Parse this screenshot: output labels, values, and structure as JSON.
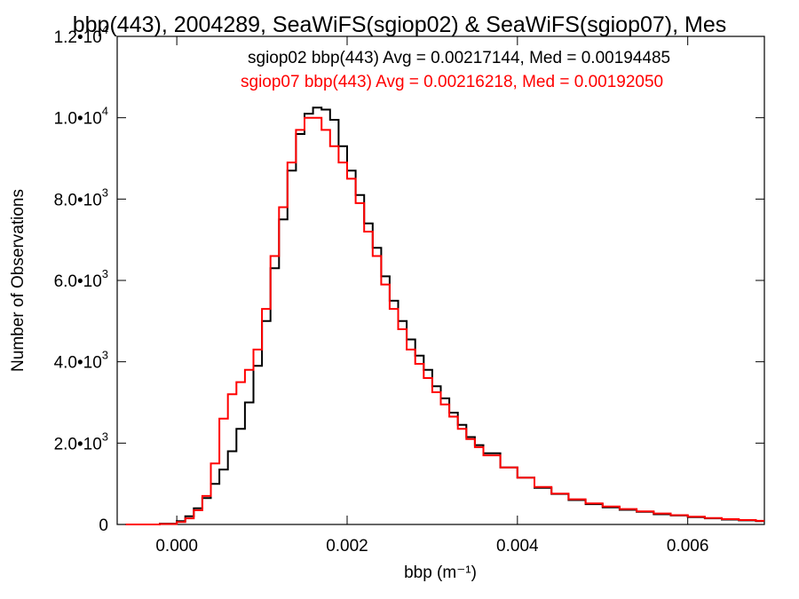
{
  "chart_data": {
    "type": "line",
    "title": "bbp(443), 2004289, SeaWiFS(sgiop02) & SeaWiFS(sgiop07), Mes",
    "xlabel": "bbp (m⁻¹)",
    "ylabel": "Number of Observations",
    "xlim": [
      -0.0007,
      0.0069
    ],
    "ylim": [
      0,
      12000
    ],
    "x_ticks": [
      0.0,
      0.002,
      0.004,
      0.006
    ],
    "x_tick_labels": [
      "0.000",
      "0.002",
      "0.004",
      "0.006"
    ],
    "y_ticks": [
      0,
      2000,
      4000,
      6000,
      8000,
      10000,
      12000
    ],
    "y_tick_labels": [
      {
        "mantissa": "0",
        "exponent": ""
      },
      {
        "mantissa": "2.0•10",
        "exponent": "3"
      },
      {
        "mantissa": "4.0•10",
        "exponent": "3"
      },
      {
        "mantissa": "6.0•10",
        "exponent": "3"
      },
      {
        "mantissa": "8.0•10",
        "exponent": "3"
      },
      {
        "mantissa": "1.0•10",
        "exponent": "4"
      },
      {
        "mantissa": "1.2•10",
        "exponent": "4"
      }
    ],
    "grid": false,
    "legend_position": "top-right",
    "series": [
      {
        "name": "sgiop02",
        "legend": "sgiop02 bbp(443) Avg = 0.00217144, Med = 0.00194485",
        "color": "#000000",
        "x": [
          -0.0006,
          -0.0004,
          -0.0002,
          0.0,
          0.0001,
          0.0002,
          0.0003,
          0.0004,
          0.0005,
          0.0006,
          0.0007,
          0.0008,
          0.0009,
          0.001,
          0.0011,
          0.0012,
          0.0013,
          0.0014,
          0.0015,
          0.0016,
          0.0017,
          0.0018,
          0.0019,
          0.002,
          0.0021,
          0.0022,
          0.0023,
          0.0024,
          0.0025,
          0.0026,
          0.0027,
          0.0028,
          0.0029,
          0.003,
          0.0031,
          0.0032,
          0.0033,
          0.0034,
          0.0035,
          0.0036,
          0.0038,
          0.004,
          0.0042,
          0.0044,
          0.0046,
          0.0048,
          0.005,
          0.0052,
          0.0054,
          0.0056,
          0.0058,
          0.006,
          0.0062,
          0.0064,
          0.0066,
          0.0068
        ],
        "y": [
          0,
          0,
          20,
          80,
          200,
          400,
          650,
          1000,
          1350,
          1800,
          2350,
          3000,
          3900,
          5000,
          6300,
          7500,
          8700,
          9600,
          10100,
          10250,
          10200,
          9950,
          9300,
          8700,
          8100,
          7400,
          6800,
          6100,
          5500,
          5000,
          4550,
          4150,
          3800,
          3400,
          3100,
          2750,
          2450,
          2150,
          1950,
          1750,
          1400,
          1150,
          900,
          750,
          600,
          500,
          420,
          360,
          310,
          250,
          220,
          180,
          150,
          120,
          100,
          80
        ]
      },
      {
        "name": "sgiop07",
        "legend": "sgiop07 bbp(443) Avg = 0.00216218, Med = 0.00192050",
        "color": "#ff0000",
        "x": [
          -0.0006,
          -0.0004,
          -0.0002,
          0.0,
          0.0001,
          0.0002,
          0.0003,
          0.0004,
          0.0005,
          0.0006,
          0.0007,
          0.0008,
          0.0009,
          0.001,
          0.0011,
          0.0012,
          0.0013,
          0.0014,
          0.0015,
          0.0016,
          0.0017,
          0.0018,
          0.0019,
          0.002,
          0.0021,
          0.0022,
          0.0023,
          0.0024,
          0.0025,
          0.0026,
          0.0027,
          0.0028,
          0.0029,
          0.003,
          0.0031,
          0.0032,
          0.0033,
          0.0034,
          0.0035,
          0.0036,
          0.0038,
          0.004,
          0.0042,
          0.0044,
          0.0046,
          0.0048,
          0.005,
          0.0052,
          0.0054,
          0.0056,
          0.0058,
          0.006,
          0.0062,
          0.0064,
          0.0066,
          0.0068
        ],
        "y": [
          0,
          0,
          10,
          60,
          150,
          350,
          700,
          1500,
          2600,
          3200,
          3500,
          3800,
          4300,
          5300,
          6600,
          7800,
          8900,
          9700,
          10000,
          10000,
          9700,
          9300,
          8900,
          8500,
          7900,
          7200,
          6600,
          5900,
          5300,
          4800,
          4300,
          3950,
          3600,
          3250,
          2950,
          2650,
          2350,
          2100,
          1900,
          1700,
          1400,
          1150,
          920,
          760,
          620,
          520,
          440,
          380,
          320,
          270,
          230,
          190,
          160,
          130,
          110,
          90
        ]
      }
    ]
  }
}
